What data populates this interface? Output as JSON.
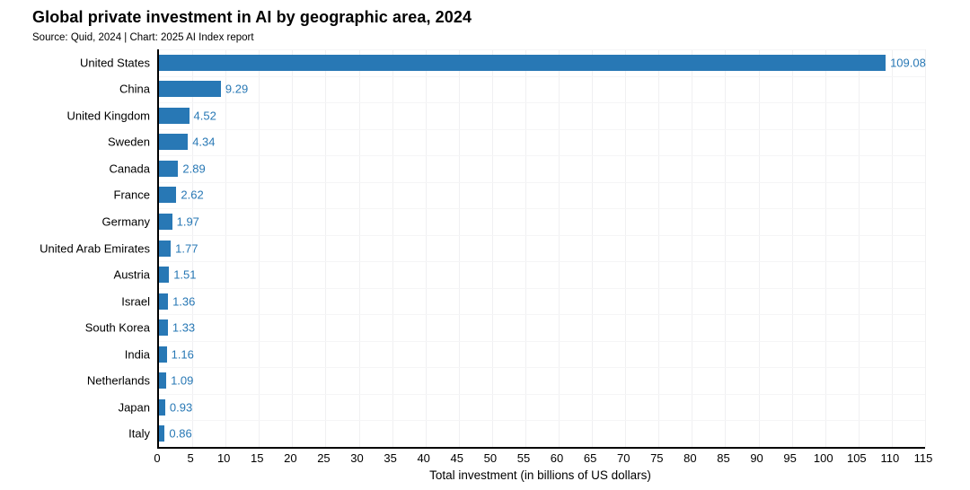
{
  "title": "Global private investment in AI by geographic area, 2024",
  "subtitle": "Source: Quid, 2024 | Chart: 2025 AI Index report",
  "colors": {
    "bar": "#2878b5",
    "value_label": "#2878b5",
    "axis": "#000000",
    "gridline": "#f0f0f2",
    "text": "#000000",
    "background": "#ffffff"
  },
  "chart_data": {
    "type": "bar",
    "orientation": "horizontal",
    "title": "Global private investment in AI by geographic area, 2024",
    "subtitle": "Source: Quid, 2024 | Chart: 2025 AI Index report",
    "categories": [
      "United States",
      "China",
      "United Kingdom",
      "Sweden",
      "Canada",
      "France",
      "Germany",
      "United Arab Emirates",
      "Austria",
      "Israel",
      "South Korea",
      "India",
      "Netherlands",
      "Japan",
      "Italy"
    ],
    "values": [
      109.08,
      9.29,
      4.52,
      4.34,
      2.89,
      2.62,
      1.97,
      1.77,
      1.51,
      1.36,
      1.33,
      1.16,
      1.09,
      0.93,
      0.86
    ],
    "value_labels": [
      "109.08",
      "9.29",
      "4.52",
      "4.34",
      "2.89",
      "2.62",
      "1.97",
      "1.77",
      "1.51",
      "1.36",
      "1.33",
      "1.16",
      "1.09",
      "0.93",
      "0.86"
    ],
    "xlabel": "Total investment (in billions of US dollars)",
    "ylabel": "",
    "xlim": [
      0,
      115
    ],
    "xticks": [
      0,
      5,
      10,
      15,
      20,
      25,
      30,
      35,
      40,
      45,
      50,
      55,
      60,
      65,
      70,
      75,
      80,
      85,
      90,
      95,
      100,
      105,
      110,
      115
    ],
    "grid": true,
    "legend": false
  }
}
